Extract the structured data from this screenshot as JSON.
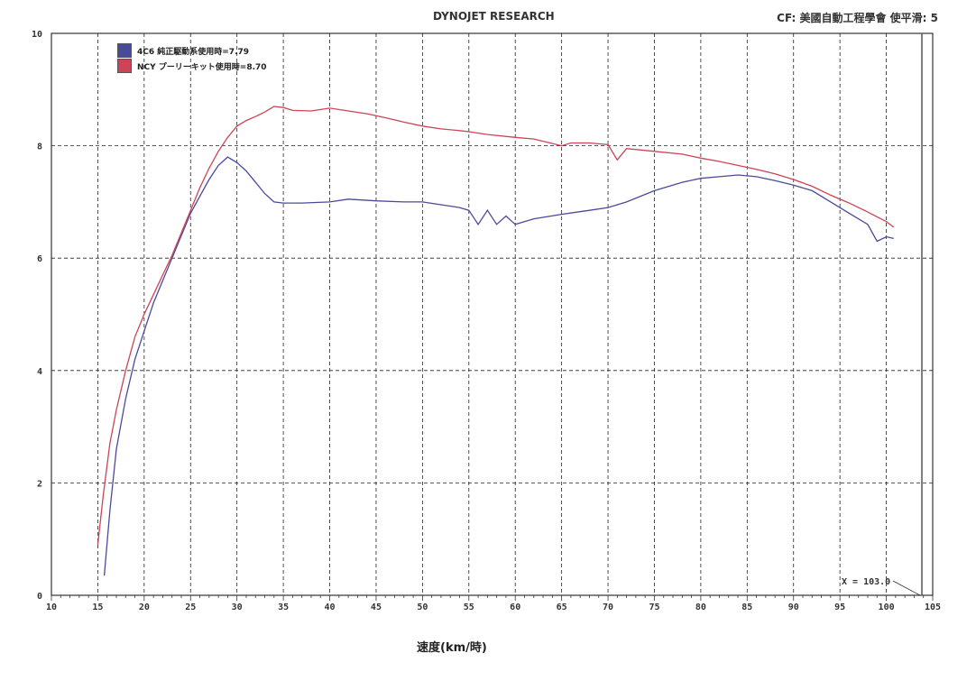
{
  "header": {
    "title": "DYNOJET RESEARCH",
    "correction": "CF: 美國自動工程學會 使平滑: 5"
  },
  "legend": [
    {
      "label": "4C6 純正駆動系使用時=7.79",
      "color": "#4a4a9a"
    },
    {
      "label": "NCY プーリーキット使用時=8.70",
      "color": "#cc4455"
    }
  ],
  "cursor_label": "X = 103.0",
  "chart_data": {
    "type": "line",
    "xlabel": "速度(km/時)",
    "ylabel": "",
    "xlim": [
      10,
      105
    ],
    "ylim": [
      0,
      10
    ],
    "x_ticks": [
      "10",
      "15",
      "20",
      "25",
      "30",
      "35",
      "40",
      "45",
      "50",
      "55",
      "60",
      "65",
      "70",
      "75",
      "80",
      "85",
      "90",
      "95",
      "100",
      "105"
    ],
    "y_ticks": [
      "0",
      "2",
      "4",
      "6",
      "8",
      "10"
    ],
    "grid": true,
    "series": [
      {
        "name": "4C6 純正駆動系使用時=7.79",
        "color": "#4a4a9a",
        "points": [
          [
            15.7,
            0.35
          ],
          [
            16.3,
            1.5
          ],
          [
            17,
            2.6
          ],
          [
            18,
            3.5
          ],
          [
            19,
            4.2
          ],
          [
            20,
            4.7
          ],
          [
            21,
            5.2
          ],
          [
            22,
            5.6
          ],
          [
            23,
            6.0
          ],
          [
            24,
            6.4
          ],
          [
            25,
            6.8
          ],
          [
            26,
            7.1
          ],
          [
            27,
            7.4
          ],
          [
            28,
            7.65
          ],
          [
            29,
            7.8
          ],
          [
            30,
            7.7
          ],
          [
            31,
            7.55
          ],
          [
            32,
            7.35
          ],
          [
            33,
            7.15
          ],
          [
            34,
            7.0
          ],
          [
            35,
            6.98
          ],
          [
            37,
            6.98
          ],
          [
            40,
            7.0
          ],
          [
            42,
            7.05
          ],
          [
            45,
            7.02
          ],
          [
            48,
            7.0
          ],
          [
            50,
            7.0
          ],
          [
            52,
            6.95
          ],
          [
            54,
            6.9
          ],
          [
            55,
            6.85
          ],
          [
            56,
            6.6
          ],
          [
            57,
            6.85
          ],
          [
            58,
            6.6
          ],
          [
            59,
            6.75
          ],
          [
            60,
            6.6
          ],
          [
            62,
            6.7
          ],
          [
            65,
            6.78
          ],
          [
            68,
            6.85
          ],
          [
            70,
            6.9
          ],
          [
            72,
            7.0
          ],
          [
            75,
            7.2
          ],
          [
            78,
            7.35
          ],
          [
            80,
            7.42
          ],
          [
            82,
            7.45
          ],
          [
            84,
            7.48
          ],
          [
            86,
            7.45
          ],
          [
            88,
            7.38
          ],
          [
            90,
            7.3
          ],
          [
            92,
            7.2
          ],
          [
            94,
            7.0
          ],
          [
            96,
            6.8
          ],
          [
            98,
            6.6
          ],
          [
            99,
            6.3
          ],
          [
            100,
            6.38
          ],
          [
            100.8,
            6.35
          ]
        ]
      },
      {
        "name": "NCY プーリーキット使用時=8.70",
        "color": "#cc4455",
        "points": [
          [
            15,
            0.9
          ],
          [
            15.6,
            1.8
          ],
          [
            16.3,
            2.7
          ],
          [
            17,
            3.3
          ],
          [
            18,
            4.0
          ],
          [
            19,
            4.6
          ],
          [
            20,
            5.0
          ],
          [
            21,
            5.35
          ],
          [
            22,
            5.7
          ],
          [
            23,
            6.05
          ],
          [
            24,
            6.45
          ],
          [
            25,
            6.85
          ],
          [
            26,
            7.25
          ],
          [
            27,
            7.6
          ],
          [
            28,
            7.9
          ],
          [
            29,
            8.15
          ],
          [
            30,
            8.35
          ],
          [
            31,
            8.45
          ],
          [
            32,
            8.52
          ],
          [
            33,
            8.6
          ],
          [
            34,
            8.7
          ],
          [
            35,
            8.68
          ],
          [
            36,
            8.63
          ],
          [
            38,
            8.62
          ],
          [
            40,
            8.67
          ],
          [
            42,
            8.62
          ],
          [
            44,
            8.57
          ],
          [
            46,
            8.5
          ],
          [
            48,
            8.42
          ],
          [
            50,
            8.35
          ],
          [
            52,
            8.3
          ],
          [
            54,
            8.27
          ],
          [
            55,
            8.25
          ],
          [
            57,
            8.2
          ],
          [
            60,
            8.15
          ],
          [
            62,
            8.12
          ],
          [
            65,
            8.0
          ],
          [
            66,
            8.05
          ],
          [
            68,
            8.05
          ],
          [
            70,
            8.02
          ],
          [
            71,
            7.75
          ],
          [
            72,
            7.95
          ],
          [
            75,
            7.9
          ],
          [
            78,
            7.85
          ],
          [
            80,
            7.78
          ],
          [
            82,
            7.72
          ],
          [
            84,
            7.65
          ],
          [
            86,
            7.58
          ],
          [
            88,
            7.5
          ],
          [
            90,
            7.4
          ],
          [
            92,
            7.28
          ],
          [
            94,
            7.12
          ],
          [
            96,
            6.98
          ],
          [
            98,
            6.82
          ],
          [
            100,
            6.65
          ],
          [
            100.8,
            6.55
          ]
        ]
      }
    ]
  }
}
